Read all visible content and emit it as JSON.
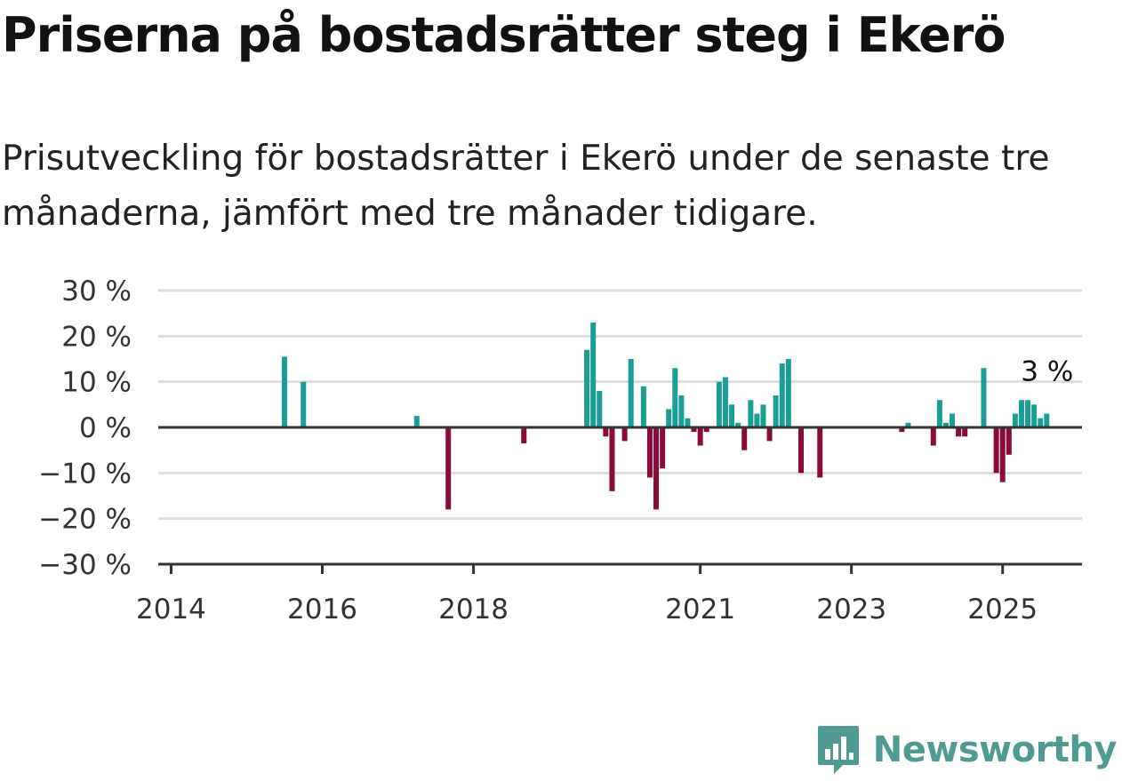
{
  "header": {
    "title": "Priserna på bostadsrätter steg i Ekerö",
    "subtitle": "Prisutveckling för bostadsrätter i Ekerö under de senaste tre månaderna, jämfört med tre månader tidigare."
  },
  "branding": {
    "logo_text": "Newsworthy",
    "logo_icon": "bar-chart-speech-bubble-icon"
  },
  "chart_data": {
    "type": "bar",
    "title": "",
    "xlabel": "",
    "ylabel": "",
    "ylim": [
      -30,
      30
    ],
    "y_ticks": [
      30,
      20,
      10,
      0,
      -10,
      -20,
      -30
    ],
    "y_tick_labels": [
      "30 %",
      "20 %",
      "10 %",
      "0 %",
      "−10 %",
      "−20 %",
      "−30 %"
    ],
    "x_ticks": [
      "2014-01",
      "2016-01",
      "2018-01",
      "2021-01",
      "2023-01",
      "2025-01"
    ],
    "x_tick_labels": [
      "2014",
      "2016",
      "2018",
      "2021",
      "2023",
      "2025"
    ],
    "grid": true,
    "colors": {
      "positive": "#1a9e96",
      "negative": "#8b0a3c",
      "grid": "#dddddd",
      "axis": "#333333"
    },
    "end_label": "3 %",
    "points": [
      {
        "date": "2015-07",
        "value": 15.5
      },
      {
        "date": "2015-10",
        "value": 10
      },
      {
        "date": "2017-04",
        "value": 2.5
      },
      {
        "date": "2017-09",
        "value": -18
      },
      {
        "date": "2018-09",
        "value": -3.5
      },
      {
        "date": "2019-07",
        "value": 17
      },
      {
        "date": "2019-08",
        "value": 23
      },
      {
        "date": "2019-09",
        "value": 8
      },
      {
        "date": "2019-10",
        "value": -2
      },
      {
        "date": "2019-11",
        "value": -14
      },
      {
        "date": "2020-01",
        "value": -3
      },
      {
        "date": "2020-02",
        "value": 15
      },
      {
        "date": "2020-04",
        "value": 9
      },
      {
        "date": "2020-05",
        "value": -11
      },
      {
        "date": "2020-06",
        "value": -18
      },
      {
        "date": "2020-07",
        "value": -9
      },
      {
        "date": "2020-08",
        "value": 4
      },
      {
        "date": "2020-09",
        "value": 13
      },
      {
        "date": "2020-10",
        "value": 7
      },
      {
        "date": "2020-11",
        "value": 2
      },
      {
        "date": "2020-12",
        "value": -1
      },
      {
        "date": "2021-01",
        "value": -4
      },
      {
        "date": "2021-02",
        "value": -1
      },
      {
        "date": "2021-04",
        "value": 10
      },
      {
        "date": "2021-05",
        "value": 11
      },
      {
        "date": "2021-06",
        "value": 5
      },
      {
        "date": "2021-07",
        "value": 1
      },
      {
        "date": "2021-08",
        "value": -5
      },
      {
        "date": "2021-09",
        "value": 6
      },
      {
        "date": "2021-10",
        "value": 3
      },
      {
        "date": "2021-11",
        "value": 5
      },
      {
        "date": "2021-12",
        "value": -3
      },
      {
        "date": "2022-01",
        "value": 7
      },
      {
        "date": "2022-02",
        "value": 14
      },
      {
        "date": "2022-03",
        "value": 15
      },
      {
        "date": "2022-05",
        "value": -10
      },
      {
        "date": "2022-08",
        "value": -11
      },
      {
        "date": "2023-09",
        "value": -1
      },
      {
        "date": "2023-10",
        "value": 1
      },
      {
        "date": "2024-02",
        "value": -4
      },
      {
        "date": "2024-03",
        "value": 6
      },
      {
        "date": "2024-04",
        "value": 1
      },
      {
        "date": "2024-05",
        "value": 3
      },
      {
        "date": "2024-06",
        "value": -2
      },
      {
        "date": "2024-07",
        "value": -2
      },
      {
        "date": "2024-10",
        "value": 13
      },
      {
        "date": "2024-12",
        "value": -10
      },
      {
        "date": "2025-01",
        "value": -12
      },
      {
        "date": "2025-02",
        "value": -6
      },
      {
        "date": "2025-03",
        "value": 3
      },
      {
        "date": "2025-04",
        "value": 6
      },
      {
        "date": "2025-05",
        "value": 6
      },
      {
        "date": "2025-06",
        "value": 5
      },
      {
        "date": "2025-07",
        "value": 2
      },
      {
        "date": "2025-08",
        "value": 3
      }
    ]
  }
}
